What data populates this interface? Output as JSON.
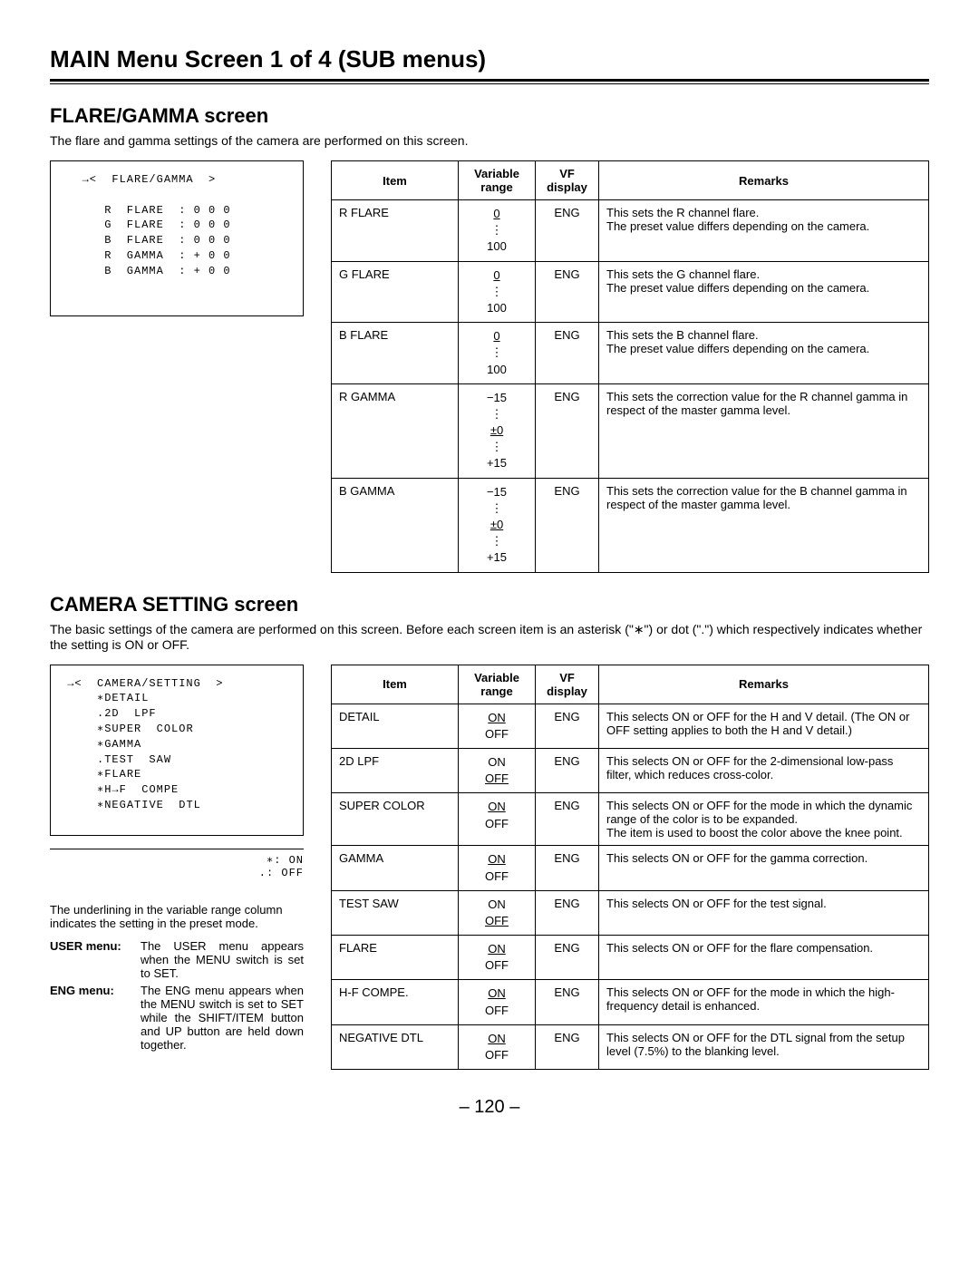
{
  "main_title": "MAIN Menu Screen 1 of 4 (SUB menus)",
  "page_number": "– 120 –",
  "flare": {
    "title": "FLARE/GAMMA screen",
    "desc": "The flare and gamma settings of the camera are performed on this screen.",
    "screen": "   →<  FLARE/GAMMA  >\n\n      R  FLARE  : 0 0 0\n      G  FLARE  : 0 0 0\n      B  FLARE  : 0 0 0\n      R  GAMMA  : + 0 0\n      B  GAMMA  : + 0 0",
    "headers": {
      "item": "Item",
      "range": "Variable range",
      "vf": "VF display",
      "remarks": "Remarks"
    },
    "rows": [
      {
        "item": "R FLARE",
        "range_html": "<span class='und'>0</span><br><span class='dots'>⋮</span><br>100",
        "vf": "ENG",
        "remarks": "This sets the R channel flare.\nThe preset value differs depending on the camera."
      },
      {
        "item": "G FLARE",
        "range_html": "<span class='und'>0</span><br><span class='dots'>⋮</span><br>100",
        "vf": "ENG",
        "remarks": "This sets the G channel flare.\nThe preset value differs depending on the camera."
      },
      {
        "item": "B FLARE",
        "range_html": "<span class='und'>0</span><br><span class='dots'>⋮</span><br>100",
        "vf": "ENG",
        "remarks": "This sets the B channel flare.\nThe preset value differs depending on the camera."
      },
      {
        "item": "R GAMMA",
        "range_html": "−15<br><span class='dots'>⋮</span><br><span class='und'>±0</span><br><span class='dots'>⋮</span><br>+15",
        "vf": "ENG",
        "remarks": "This sets the correction value for the R channel gamma in respect of the master gamma level."
      },
      {
        "item": "B GAMMA",
        "range_html": "−15<br><span class='dots'>⋮</span><br><span class='und'>±0</span><br><span class='dots'>⋮</span><br>+15",
        "vf": "ENG",
        "remarks": "This sets the correction value for the B channel gamma in respect of the master gamma level."
      }
    ]
  },
  "camera": {
    "title": "CAMERA SETTING screen",
    "desc": "The basic settings of the camera are performed on this screen. Before each screen item is an asterisk (\"∗\") or dot (\".\") which respectively indicates whether the setting is ON or OFF.",
    "screen": " →<  CAMERA/SETTING  >\n     ∗DETAIL\n     .2D  LPF\n     ∗SUPER  COLOR\n     ∗GAMMA\n     .TEST  SAW\n     ∗FLARE\n     ∗H→F  COMPE\n     ∗NEGATIVE  DTL",
    "legend": "∗: ON\n.: OFF",
    "headers": {
      "item": "Item",
      "range": "Variable range",
      "vf": "VF display",
      "remarks": "Remarks"
    },
    "rows": [
      {
        "item": "DETAIL",
        "range_html": "<span class='und'>ON</span><br>OFF",
        "vf": "ENG",
        "remarks": "This selects ON or OFF for the H and V detail. (The ON or OFF setting applies to both the H and V detail.)"
      },
      {
        "item": "2D LPF",
        "range_html": "ON<br><span class='und'>OFF</span>",
        "vf": "ENG",
        "remarks": "This selects ON or OFF for the 2-dimensional low-pass filter, which reduces cross-color."
      },
      {
        "item": "SUPER COLOR",
        "range_html": "<span class='und'>ON</span><br>OFF",
        "vf": "ENG",
        "remarks": "This selects ON or OFF for the mode in which the dynamic range of the color is to be expanded.\nThe item is used to boost the color above the knee point."
      },
      {
        "item": "GAMMA",
        "range_html": "<span class='und'>ON</span><br>OFF",
        "vf": "ENG",
        "remarks": "This selects ON or OFF for the gamma correction."
      },
      {
        "item": "TEST SAW",
        "range_html": "ON<br><span class='und'>OFF</span>",
        "vf": "ENG",
        "remarks": "This selects ON or OFF for the test signal."
      },
      {
        "item": "FLARE",
        "range_html": "<span class='und'>ON</span><br>OFF",
        "vf": "ENG",
        "remarks": "This selects ON or OFF for the flare compensation."
      },
      {
        "item": "H-F COMPE.",
        "range_html": "<span class='und'>ON</span><br>OFF",
        "vf": "ENG",
        "remarks": "This selects ON or OFF for the mode in which the high-frequency detail is enhanced."
      },
      {
        "item": "NEGATIVE DTL",
        "range_html": "<span class='und'>ON</span><br>OFF",
        "vf": "ENG",
        "remarks": "This selects ON or OFF for the DTL signal from the setup level (7.5%) to the blanking level."
      }
    ],
    "note_underline": "The underlining in the variable range column indicates the setting in the preset mode.",
    "user_menu_label": "USER menu:",
    "user_menu_text": "The USER menu appears when the MENU switch is set to SET.",
    "eng_menu_label": "ENG menu:",
    "eng_menu_text": "The ENG menu appears when the MENU switch is set to SET while the SHIFT/ITEM button and UP button are held down together."
  }
}
